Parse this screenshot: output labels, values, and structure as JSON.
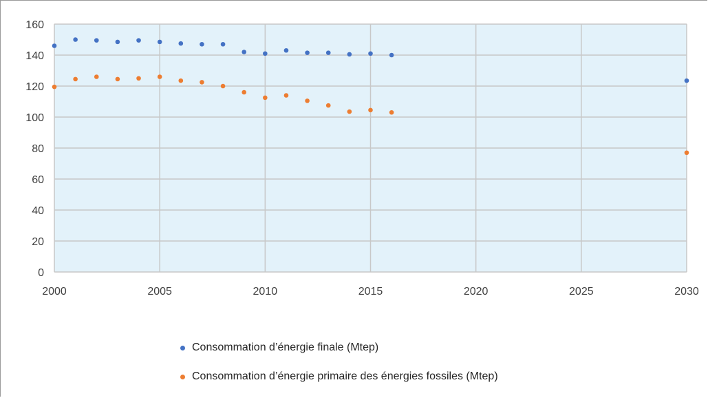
{
  "chart_data": {
    "type": "scatter",
    "title": "",
    "xlabel": "",
    "ylabel": "",
    "xlim": [
      2000,
      2030
    ],
    "ylim": [
      0,
      160
    ],
    "x_ticks": [
      2000,
      2005,
      2010,
      2015,
      2020,
      2025,
      2030
    ],
    "y_ticks": [
      0,
      20,
      40,
      60,
      80,
      100,
      120,
      140,
      160
    ],
    "grid": true,
    "plot_background": "#e3f2fa",
    "gridline_color": "#c8c8c8",
    "legend_position": "bottom",
    "series": [
      {
        "name": "Consommation d’énergie finale (Mtep)",
        "color": "#4472c4",
        "x": [
          2000,
          2001,
          2002,
          2003,
          2004,
          2005,
          2006,
          2007,
          2008,
          2009,
          2010,
          2011,
          2012,
          2013,
          2014,
          2015,
          2016,
          2030
        ],
        "y": [
          146,
          150,
          149.5,
          148.5,
          149.5,
          148.5,
          147.5,
          147,
          147,
          142,
          141,
          143,
          141.5,
          141.5,
          140.5,
          141,
          140,
          123.5
        ]
      },
      {
        "name": "Consommation d’énergie primaire des énergies fossiles (Mtep)",
        "color": "#ed7d31",
        "x": [
          2000,
          2001,
          2002,
          2003,
          2004,
          2005,
          2006,
          2007,
          2008,
          2009,
          2010,
          2011,
          2012,
          2013,
          2014,
          2015,
          2016,
          2030
        ],
        "y": [
          119.5,
          124.5,
          126,
          124.5,
          125,
          126,
          123.5,
          122.5,
          120,
          116,
          112.5,
          114,
          110.5,
          107.5,
          103.5,
          104.5,
          103,
          77
        ]
      }
    ]
  }
}
